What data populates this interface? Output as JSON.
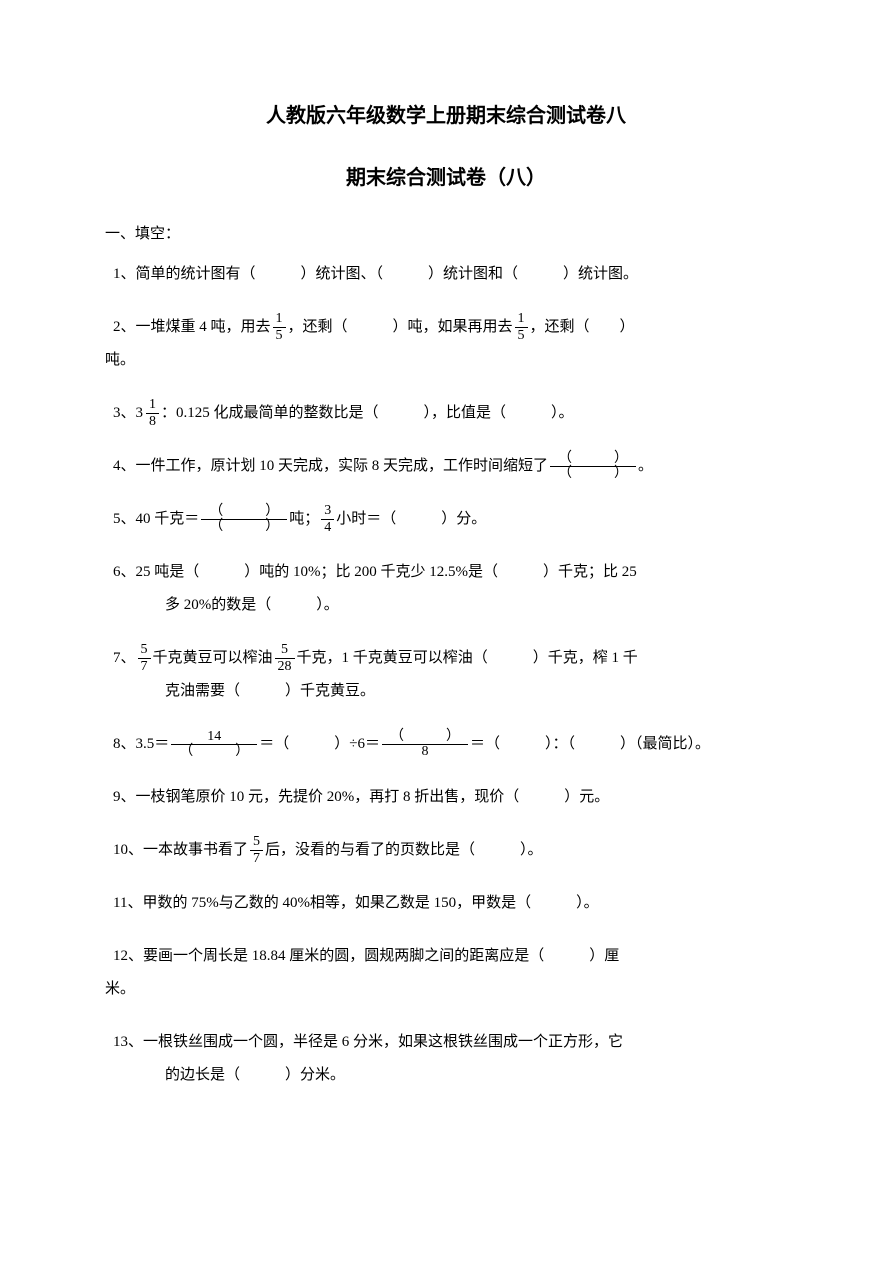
{
  "title": "人教版六年级数学上册期末综合测试卷八",
  "subtitle": "期末综合测试卷（八）",
  "section1": "一、填空：",
  "q1": "1、简单的统计图有（　　　）统计图、（　　　）统计图和（　　　）统计图。",
  "q2_p1": "2、一堆煤重 4 吨，用去",
  "q2_f1n": "1",
  "q2_f1d": "5",
  "q2_p2": "，还剩（　　　）吨，如果再用去",
  "q2_f2n": "1",
  "q2_f2d": "5",
  "q2_p3": "，还剩（　　）",
  "q2_p4": "吨。",
  "q3_p1": "3、",
  "q3_whole": "3",
  "q3_fn": "1",
  "q3_fd": "8",
  "q3_p2": "：0.125 化成最简单的整数比是（　　　），比值是（　　　）。",
  "q4_p1": "4、一件工作，原计划 10 天完成，实际 8 天完成，工作时间缩短了",
  "q4_fn": "（　　　）",
  "q4_fd": "（　　　）",
  "q4_p2": "。",
  "q5_p1": "5、40 千克＝",
  "q5_f1n": "（　　　）",
  "q5_f1d": "（　　　）",
  "q5_p2": "吨；",
  "q5_f2n": "3",
  "q5_f2d": "4",
  "q5_p3": "小时＝（　　　）分。",
  "q6_p1": "6、25 吨是（　　　）吨的 10%；比 200 千克少 12.5%是（　　　）千克；比 25",
  "q6_p2": "多 20%的数是（　　　）。",
  "q7_p1": "7、",
  "q7_f1n": "5",
  "q7_f1d": "7",
  "q7_p2": "千克黄豆可以榨油",
  "q7_f2n": "5",
  "q7_f2d": "28",
  "q7_p3": "千克，1 千克黄豆可以榨油（　　　）千克，榨 1 千",
  "q7_p4": "克油需要（　　　）千克黄豆。",
  "q8_p1": "8、3.5＝",
  "q8_f1n": "14",
  "q8_f1d": "（　　　）",
  "q8_p2": "＝（　　　）÷6＝",
  "q8_f2n": "（　　　）",
  "q8_f2d": "8",
  "q8_p3": "＝（　　　）：（　　　）（最简比）。",
  "q9": "9、一枝钢笔原价 10 元，先提价 20%，再打 8 折出售，现价（　　　）元。",
  "q10_p1": "10、一本故事书看了",
  "q10_fn": "5",
  "q10_fd": "7",
  "q10_p2": "后，没看的与看了的页数比是（　　　）。",
  "q11": "11、甲数的 75%与乙数的 40%相等，如果乙数是 150，甲数是（　　　）。",
  "q12_p1": "12、要画一个周长是 18.84 厘米的圆，圆规两脚之间的距离应是（　　　）厘",
  "q12_p2": "米。",
  "q13_p1": "13、一根铁丝围成一个圆，半径是 6 分米，如果这根铁丝围成一个正方形，它",
  "q13_p2": "的边长是（　　　）分米。"
}
